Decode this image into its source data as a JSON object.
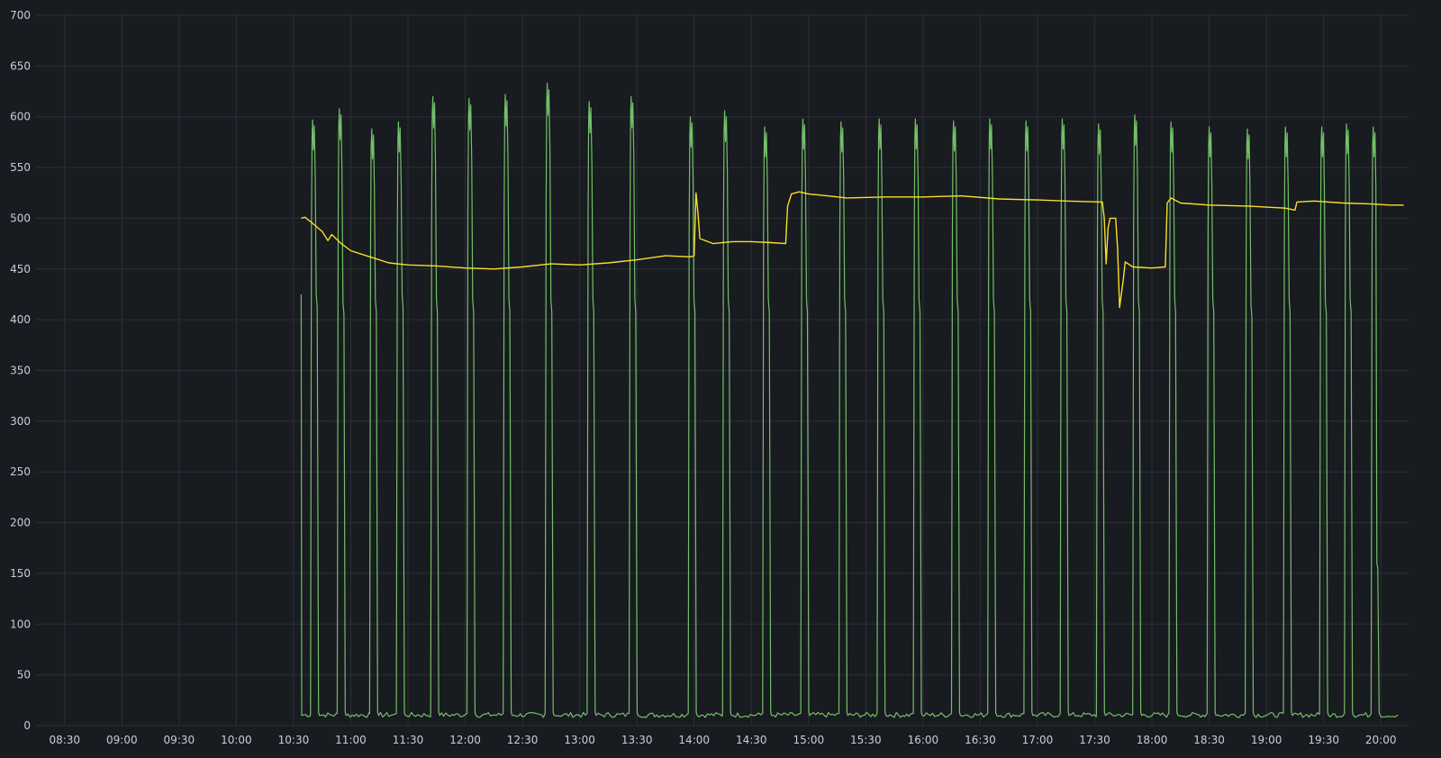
{
  "chart_data": {
    "type": "line",
    "title": "",
    "xlabel": "",
    "ylabel": "",
    "ylim": [
      0,
      700
    ],
    "y_ticks": [
      0,
      50,
      100,
      150,
      200,
      250,
      300,
      350,
      400,
      450,
      500,
      550,
      600,
      650,
      700
    ],
    "x_range": [
      "08:15",
      "20:15"
    ],
    "x_ticks": [
      "08:30",
      "09:00",
      "09:30",
      "10:00",
      "10:30",
      "11:00",
      "11:30",
      "12:00",
      "12:30",
      "13:00",
      "13:30",
      "14:00",
      "14:30",
      "15:00",
      "15:30",
      "16:00",
      "16:30",
      "17:00",
      "17:30",
      "18:00",
      "18:30",
      "19:00",
      "19:30",
      "20:00"
    ],
    "grid": true,
    "legend": "none",
    "series": [
      {
        "color": "#73bf69",
        "baseline": 10,
        "start_point": {
          "x": "10:34",
          "y": 425
        },
        "cycles": [
          {
            "x": "10:40",
            "peak": 597,
            "low": 425
          },
          {
            "x": "10:54",
            "peak": 608,
            "low": 418
          },
          {
            "x": "11:11",
            "peak": 588,
            "low": 420
          },
          {
            "x": "11:25",
            "peak": 595,
            "low": 425
          },
          {
            "x": "11:43",
            "peak": 620,
            "low": 420
          },
          {
            "x": "12:02",
            "peak": 618,
            "low": 420
          },
          {
            "x": "12:21",
            "peak": 622,
            "low": 420
          },
          {
            "x": "12:43",
            "peak": 633,
            "low": 420
          },
          {
            "x": "13:05",
            "peak": 615,
            "low": 420
          },
          {
            "x": "13:27",
            "peak": 620,
            "low": 420
          },
          {
            "x": "13:58",
            "peak": 600,
            "low": 420
          },
          {
            "x": "14:16",
            "peak": 606,
            "low": 420
          },
          {
            "x": "14:37",
            "peak": 590,
            "low": 420
          },
          {
            "x": "14:57",
            "peak": 598,
            "low": 420
          },
          {
            "x": "15:17",
            "peak": 595,
            "low": 420
          },
          {
            "x": "15:37",
            "peak": 598,
            "low": 420
          },
          {
            "x": "15:56",
            "peak": 598,
            "low": 420
          },
          {
            "x": "16:16",
            "peak": 596,
            "low": 420
          },
          {
            "x": "16:35",
            "peak": 598,
            "low": 420
          },
          {
            "x": "16:54",
            "peak": 596,
            "low": 420
          },
          {
            "x": "17:13",
            "peak": 598,
            "low": 420
          },
          {
            "x": "17:32",
            "peak": 593,
            "low": 420
          },
          {
            "x": "17:51",
            "peak": 602,
            "low": 420
          },
          {
            "x": "18:10",
            "peak": 595,
            "low": 420
          },
          {
            "x": "18:30",
            "peak": 590,
            "low": 420
          },
          {
            "x": "18:50",
            "peak": 588,
            "low": 415
          },
          {
            "x": "19:10",
            "peak": 590,
            "low": 420
          },
          {
            "x": "19:29",
            "peak": 590,
            "low": 418
          },
          {
            "x": "19:42",
            "peak": 593,
            "low": 420
          },
          {
            "x": "19:56",
            "peak": 590,
            "low": 160
          }
        ],
        "end_point": {
          "x": "20:09",
          "y": 10
        }
      },
      {
        "color": "#fade2a",
        "points": [
          [
            "10:34",
            500
          ],
          [
            "10:36",
            501
          ],
          [
            "10:40",
            495
          ],
          [
            "10:45",
            487
          ],
          [
            "10:48",
            478
          ],
          [
            "10:50",
            484
          ],
          [
            "10:55",
            475
          ],
          [
            "11:00",
            468
          ],
          [
            "11:10",
            462
          ],
          [
            "11:20",
            456
          ],
          [
            "11:30",
            454
          ],
          [
            "11:45",
            453
          ],
          [
            "12:00",
            451
          ],
          [
            "12:15",
            450
          ],
          [
            "12:30",
            452
          ],
          [
            "12:45",
            455
          ],
          [
            "13:00",
            454
          ],
          [
            "13:15",
            456
          ],
          [
            "13:30",
            459
          ],
          [
            "13:45",
            463
          ],
          [
            "13:58",
            462
          ],
          [
            "14:00",
            463
          ],
          [
            "14:01",
            525
          ],
          [
            "14:02",
            505
          ],
          [
            "14:03",
            480
          ],
          [
            "14:10",
            475
          ],
          [
            "14:20",
            477
          ],
          [
            "14:30",
            477
          ],
          [
            "14:40",
            476
          ],
          [
            "14:48",
            475
          ],
          [
            "14:49",
            512
          ],
          [
            "14:51",
            524
          ],
          [
            "14:55",
            526
          ],
          [
            "15:00",
            524
          ],
          [
            "15:10",
            522
          ],
          [
            "15:20",
            520
          ],
          [
            "15:40",
            521
          ],
          [
            "16:00",
            521
          ],
          [
            "16:20",
            522
          ],
          [
            "16:40",
            519
          ],
          [
            "17:00",
            518
          ],
          [
            "17:15",
            517
          ],
          [
            "17:34",
            516
          ],
          [
            "17:35",
            500
          ],
          [
            "17:36",
            455
          ],
          [
            "17:37",
            490
          ],
          [
            "17:38",
            500
          ],
          [
            "17:41",
            500
          ],
          [
            "17:42",
            470
          ],
          [
            "17:43",
            412
          ],
          [
            "17:45",
            440
          ],
          [
            "17:46",
            457
          ],
          [
            "17:50",
            452
          ],
          [
            "18:00",
            451
          ],
          [
            "18:07",
            452
          ],
          [
            "18:08",
            515
          ],
          [
            "18:10",
            520
          ],
          [
            "18:15",
            515
          ],
          [
            "18:30",
            513
          ],
          [
            "18:50",
            512
          ],
          [
            "19:10",
            510
          ],
          [
            "19:15",
            508
          ],
          [
            "19:16",
            516
          ],
          [
            "19:25",
            517
          ],
          [
            "19:40",
            515
          ],
          [
            "19:55",
            514
          ],
          [
            "20:05",
            513
          ],
          [
            "20:12",
            513
          ]
        ]
      }
    ]
  }
}
